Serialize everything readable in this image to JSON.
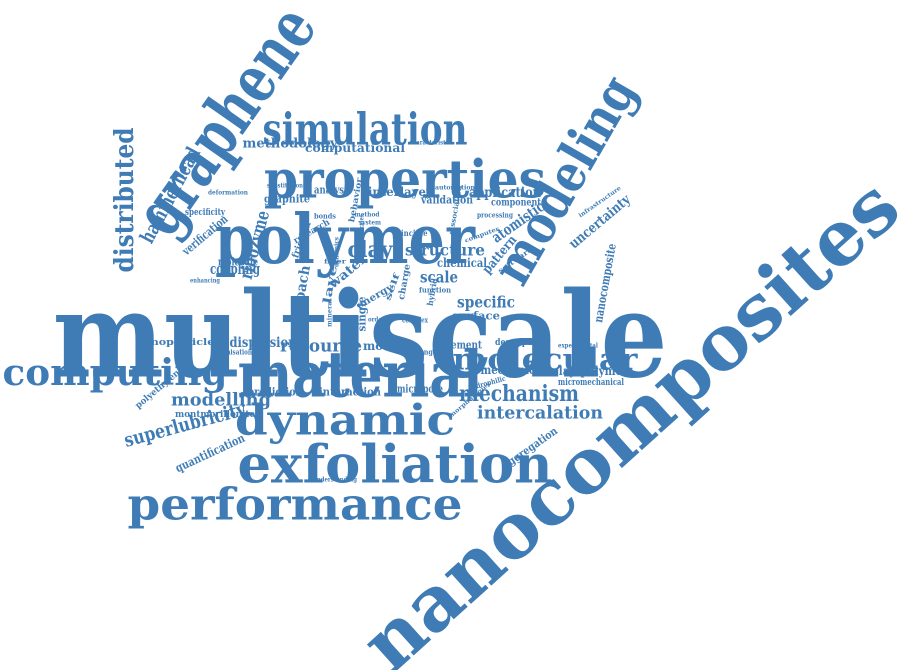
{
  "colors": {
    "word": "#3f7cb6",
    "background": "#ffffff"
  },
  "words": [
    "nanocomposites",
    "multiscale",
    "polymer",
    "properties",
    "simulation",
    "graphene",
    "modeling",
    "material",
    "computing",
    "molecular",
    "dynamic",
    "exfoliation",
    "performance",
    "distributed",
    "hammerhead",
    "methodology",
    "computational",
    "characteristic",
    "analysis",
    "interlayer",
    "application",
    "validation",
    "automation",
    "graphite",
    "substitution",
    "deformation",
    "specificity",
    "verification",
    "molecule",
    "ribozyme",
    "coupling",
    "enhancing",
    "component",
    "processing",
    "atomistic",
    "uncertainty",
    "infrastructure",
    "nanocomposite",
    "structure",
    "clay",
    "chemical",
    "scale",
    "pattern",
    "software",
    "water",
    "layer",
    "approach",
    "specific",
    "surface",
    "resource",
    "model",
    "dispersion",
    "element",
    "exchange",
    "description",
    "experimental",
    "mechanical",
    "clay–polymer",
    "mechanism",
    "micromechanical",
    "nanoparticles",
    "optimisation",
    "polyethylene",
    "prediction",
    "interaction",
    "micropore",
    "modelling",
    "montmorillonite",
    "intercalation",
    "superlubricity",
    "quantification",
    "aggregation",
    "understanding",
    "hydrophilic",
    "morphologies",
    "single",
    "mineral",
    "friction",
    "molecules",
    "behavior",
    "method",
    "system",
    "energy",
    "charge",
    "self",
    "bonds",
    "ordered",
    "complex",
    "hybrid",
    "dissociation",
    "function",
    "computer",
    "research",
    "principle",
    "filler",
    "dynamics"
  ]
}
